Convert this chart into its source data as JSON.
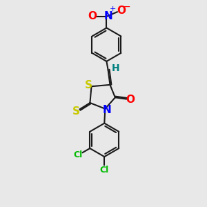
{
  "bg_color": "#e8e8e8",
  "bond_color": "#1a1a1a",
  "S_color": "#c8c800",
  "N_color": "#0000ff",
  "O_color": "#ff0000",
  "Cl_color": "#00bb00",
  "H_color": "#008080",
  "lw": 1.5,
  "fs": 10,
  "xlim": [
    -1.4,
    1.4
  ],
  "ylim": [
    -2.6,
    2.6
  ]
}
